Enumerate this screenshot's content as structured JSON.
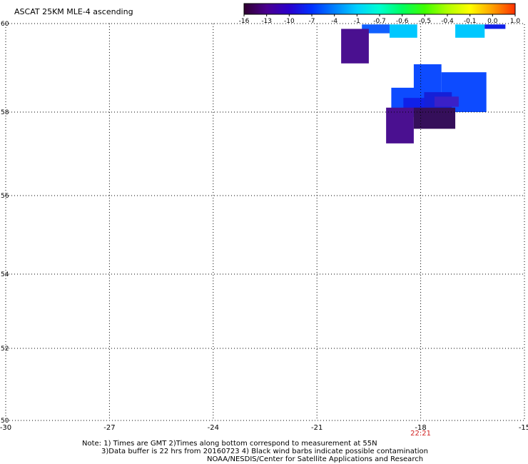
{
  "title": "ASCAT 25KM MLE-4 ascending",
  "colorbar": {
    "labels": [
      "-16",
      "-13",
      "-10",
      "-7",
      "-4",
      "-1",
      "-0.7",
      "-0.6",
      "-0.5",
      "-0.4",
      "-0.1",
      "0.0",
      "1.0"
    ],
    "colors": [
      "#300030",
      "#4a0090",
      "#2a00cc",
      "#0030ff",
      "#0080ff",
      "#00d0ff",
      "#00ffd0",
      "#00ff60",
      "#40ff00",
      "#b0ff00",
      "#ffff00",
      "#ffa000",
      "#ff3000"
    ]
  },
  "lat_labels": [
    "60",
    "58",
    "56",
    "54",
    "52",
    "50"
  ],
  "lon_labels": [
    "-30",
    "-27",
    "-24",
    "-21",
    "-18",
    "-15"
  ],
  "time_label": "22:21",
  "notes": [
    "Note: 1) Times are GMT 2)Times along bottom correspond to measurement at 55N",
    "3)Data buffer is 22 hrs from 20160723 4) Black wind barbs indicate possible contamination",
    "NOAA/NESDIS/Center for Satellite Applications and Research"
  ],
  "swath_cells": [
    {
      "lon0": -19.7,
      "lon1": -18.9,
      "lat0": 59.78,
      "lat1": 59.98,
      "color": "#1060ff"
    },
    {
      "lon0": -18.9,
      "lon1": -18.1,
      "lat0": 59.68,
      "lat1": 59.98,
      "color": "#00c8ff"
    },
    {
      "lon0": -17.0,
      "lon1": -16.15,
      "lat0": 59.68,
      "lat1": 59.98,
      "color": "#00c8ff"
    },
    {
      "lon0": -16.15,
      "lon1": -15.55,
      "lat0": 59.88,
      "lat1": 59.98,
      "color": "#1020e8"
    },
    {
      "lon0": -20.3,
      "lon1": -19.5,
      "lat0": 59.1,
      "lat1": 59.88,
      "color": "#4a1090"
    },
    {
      "lon0": -18.2,
      "lon1": -17.4,
      "lat0": 58.2,
      "lat1": 59.08,
      "color": "#0d4bff"
    },
    {
      "lon0": -17.4,
      "lon1": -16.1,
      "lat0": 58.0,
      "lat1": 58.9,
      "color": "#0d4bff"
    },
    {
      "lon0": -18.85,
      "lon1": -17.9,
      "lat0": 57.88,
      "lat1": 58.55,
      "color": "#0d4bff"
    },
    {
      "lon0": -18.5,
      "lon1": -17.7,
      "lat0": 58.02,
      "lat1": 58.32,
      "color": "#1020e8"
    },
    {
      "lon0": -17.9,
      "lon1": -17.1,
      "lat0": 57.9,
      "lat1": 58.45,
      "color": "#1520d8"
    },
    {
      "lon0": -17.6,
      "lon1": -16.9,
      "lat0": 58.12,
      "lat1": 58.35,
      "color": "#3a20c8"
    },
    {
      "lon0": -19.0,
      "lon1": -18.2,
      "lat0": 57.25,
      "lat1": 58.1,
      "color": "#4a1090"
    },
    {
      "lon0": -18.2,
      "lon1": -17.0,
      "lat0": 57.6,
      "lat1": 58.1,
      "color": "#350f5a"
    }
  ]
}
